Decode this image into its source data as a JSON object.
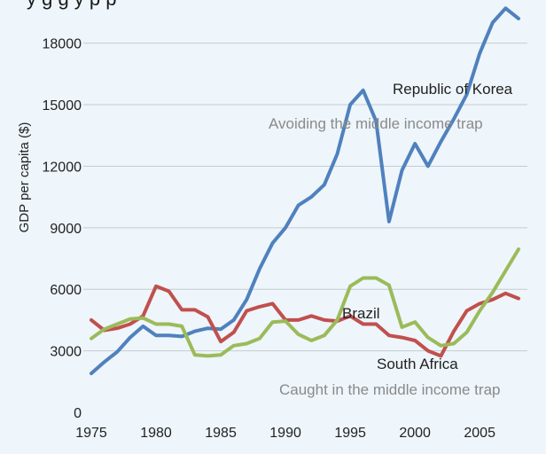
{
  "chart_data": {
    "type": "line",
    "title": "",
    "title_fragment": "y g  g      y p  p",
    "xlabel": "",
    "ylabel": "GDP per capita ($)",
    "xlim": [
      1975,
      2008
    ],
    "ylim": [
      0,
      20000
    ],
    "x_ticks": [
      1975,
      1980,
      1985,
      1990,
      1995,
      2000,
      2005
    ],
    "y_ticks": [
      0,
      3000,
      6000,
      9000,
      12000,
      15000,
      18000
    ],
    "grid": "horizontal",
    "legend": "none",
    "annotations": [
      {
        "text": "Avoiding the middle income trap",
        "color": "#8a8a8a"
      },
      {
        "text": "Caught in the middle income trap",
        "color": "#8a8a8a"
      }
    ],
    "x": [
      1975,
      1976,
      1977,
      1978,
      1979,
      1980,
      1981,
      1982,
      1983,
      1984,
      1985,
      1986,
      1987,
      1988,
      1989,
      1990,
      1991,
      1992,
      1993,
      1994,
      1995,
      1996,
      1997,
      1998,
      1999,
      2000,
      2001,
      2002,
      2003,
      2004,
      2005,
      2006,
      2007,
      2008
    ],
    "series": [
      {
        "name": "Republic of Korea",
        "color": "#4f81bd",
        "values": [
          1900,
          2450,
          2950,
          3650,
          4200,
          3750,
          3750,
          3700,
          3950,
          4100,
          4050,
          4500,
          5500,
          7000,
          8250,
          9000,
          10100,
          10500,
          11100,
          12600,
          15000,
          15700,
          14200,
          9300,
          11800,
          13100,
          12000,
          13200,
          14300,
          15500,
          17500,
          19000,
          19700,
          19200
        ]
      },
      {
        "name": "Brazil",
        "color": "#c0504d",
        "values": [
          4500,
          4000,
          4100,
          4300,
          4700,
          6150,
          5900,
          5000,
          5000,
          4650,
          3450,
          3900,
          4950,
          5150,
          5300,
          4500,
          4500,
          4700,
          4500,
          4450,
          4700,
          4300,
          4300,
          3750,
          3650,
          3500,
          3000,
          2750,
          3950,
          4950,
          5300,
          5500,
          5800,
          5550
        ]
      },
      {
        "name": "South Africa",
        "color": "#9bbb59",
        "values": [
          3600,
          4050,
          4300,
          4550,
          4600,
          4300,
          4300,
          4200,
          2800,
          2750,
          2800,
          3250,
          3350,
          3600,
          4400,
          4450,
          3800,
          3500,
          3750,
          4500,
          6150,
          6550,
          6550,
          6200,
          4150,
          4400,
          3650,
          3250,
          3350,
          3900,
          4950,
          5850,
          6900,
          7950
        ]
      }
    ]
  }
}
